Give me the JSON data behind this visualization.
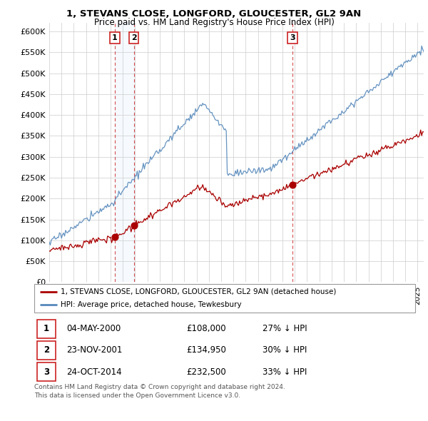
{
  "title1": "1, STEVANS CLOSE, LONGFORD, GLOUCESTER, GL2 9AN",
  "title2": "Price paid vs. HM Land Registry's House Price Index (HPI)",
  "ylabel_ticks": [
    "£0",
    "£50K",
    "£100K",
    "£150K",
    "£200K",
    "£250K",
    "£300K",
    "£350K",
    "£400K",
    "£450K",
    "£500K",
    "£550K",
    "£600K"
  ],
  "ytick_values": [
    0,
    50000,
    100000,
    150000,
    200000,
    250000,
    300000,
    350000,
    400000,
    450000,
    500000,
    550000,
    600000
  ],
  "xlim_start": 1995.0,
  "xlim_end": 2025.5,
  "ylim_min": 0,
  "ylim_max": 620000,
  "sale_dates": [
    2000.34,
    2001.89,
    2014.81
  ],
  "sale_prices": [
    108000,
    134950,
    232500
  ],
  "sale_labels": [
    "1",
    "2",
    "3"
  ],
  "sale_date_strs": [
    "04-MAY-2000",
    "23-NOV-2001",
    "24-OCT-2014"
  ],
  "sale_price_strs": [
    "£108,000",
    "£134,950",
    "£232,500"
  ],
  "sale_hpi_strs": [
    "27% ↓ HPI",
    "30% ↓ HPI",
    "33% ↓ HPI"
  ],
  "legend_red_label": "1, STEVANS CLOSE, LONGFORD, GLOUCESTER, GL2 9AN (detached house)",
  "legend_blue_label": "HPI: Average price, detached house, Tewkesbury",
  "footer1": "Contains HM Land Registry data © Crown copyright and database right 2024.",
  "footer2": "This data is licensed under the Open Government Licence v3.0.",
  "red_color": "#aa0000",
  "blue_color": "#5588bb",
  "grid_color": "#cccccc",
  "bg_color": "#ffffff",
  "shade_color": "#ddeeff"
}
